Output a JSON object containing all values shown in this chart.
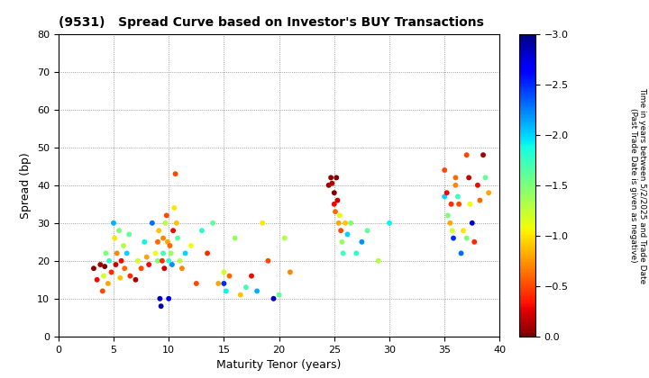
{
  "title": "(9531)   Spread Curve based on Investor's BUY Transactions",
  "xlabel": "Maturity Tenor (years)",
  "ylabel": "Spread (bp)",
  "colorbar_label": "Time in years between 5/2/2025 and Trade Date\n(Past Trade Date is given as negative)",
  "xlim": [
    0,
    40
  ],
  "ylim": [
    0,
    80
  ],
  "xticks": [
    0,
    5,
    10,
    15,
    20,
    25,
    30,
    35,
    40
  ],
  "yticks": [
    0,
    10,
    20,
    30,
    40,
    50,
    60,
    70,
    80
  ],
  "clim": [
    -3.0,
    0.0
  ],
  "cticks": [
    0.0,
    -0.5,
    -1.0,
    -1.5,
    -2.0,
    -2.5,
    -3.0
  ],
  "points": [
    [
      3.2,
      18.0,
      -0.05
    ],
    [
      3.5,
      15.0,
      -0.3
    ],
    [
      3.8,
      19.0,
      -0.1
    ],
    [
      4.0,
      12.0,
      -0.5
    ],
    [
      4.1,
      16.0,
      -1.2
    ],
    [
      4.2,
      18.5,
      -0.0
    ],
    [
      4.3,
      22.0,
      -1.5
    ],
    [
      4.5,
      14.0,
      -0.8
    ],
    [
      4.6,
      20.0,
      -1.8
    ],
    [
      4.8,
      17.0,
      -0.4
    ],
    [
      5.0,
      30.0,
      -2.1
    ],
    [
      5.1,
      26.0,
      -1.0
    ],
    [
      5.2,
      19.0,
      -0.2
    ],
    [
      5.3,
      22.0,
      -0.7
    ],
    [
      5.5,
      28.0,
      -1.5
    ],
    [
      5.6,
      15.5,
      -0.9
    ],
    [
      5.7,
      20.0,
      -0.3
    ],
    [
      5.9,
      24.0,
      -1.3
    ],
    [
      6.0,
      18.0,
      -0.6
    ],
    [
      6.2,
      22.0,
      -2.0
    ],
    [
      6.4,
      27.0,
      -1.6
    ],
    [
      6.5,
      16.0,
      -0.4
    ],
    [
      7.0,
      15.0,
      -0.1
    ],
    [
      7.2,
      20.0,
      -1.2
    ],
    [
      7.5,
      18.0,
      -0.5
    ],
    [
      7.8,
      25.0,
      -1.9
    ],
    [
      8.0,
      21.0,
      -0.8
    ],
    [
      8.2,
      19.0,
      -0.3
    ],
    [
      8.5,
      30.0,
      -2.3
    ],
    [
      8.8,
      22.0,
      -1.1
    ],
    [
      9.0,
      25.0,
      -0.6
    ],
    [
      9.0,
      20.0,
      -1.5
    ],
    [
      9.1,
      28.0,
      -0.9
    ],
    [
      9.2,
      10.0,
      -2.8
    ],
    [
      9.3,
      8.0,
      -2.9
    ],
    [
      9.4,
      20.0,
      -0.4
    ],
    [
      9.5,
      22.0,
      -1.7
    ],
    [
      9.5,
      26.0,
      -0.7
    ],
    [
      9.6,
      18.0,
      -0.2
    ],
    [
      9.7,
      30.0,
      -1.3
    ],
    [
      9.8,
      32.0,
      -0.5
    ],
    [
      9.9,
      25.0,
      -0.8
    ],
    [
      10.0,
      20.0,
      -1.8
    ],
    [
      10.0,
      10.0,
      -2.7
    ],
    [
      10.1,
      24.0,
      -0.6
    ],
    [
      10.2,
      22.0,
      -1.4
    ],
    [
      10.3,
      19.0,
      -2.2
    ],
    [
      10.4,
      28.0,
      -0.3
    ],
    [
      10.5,
      34.0,
      -1.0
    ],
    [
      10.6,
      43.0,
      -0.5
    ],
    [
      10.7,
      30.0,
      -0.9
    ],
    [
      10.8,
      26.0,
      -1.6
    ],
    [
      11.0,
      20.0,
      -1.3
    ],
    [
      11.2,
      18.0,
      -0.7
    ],
    [
      11.5,
      22.0,
      -2.0
    ],
    [
      12.0,
      24.0,
      -1.1
    ],
    [
      12.5,
      14.0,
      -0.5
    ],
    [
      13.0,
      28.0,
      -1.8
    ],
    [
      13.5,
      22.0,
      -0.4
    ],
    [
      14.0,
      30.0,
      -1.6
    ],
    [
      14.5,
      14.0,
      -0.8
    ],
    [
      15.0,
      14.0,
      -2.5
    ],
    [
      15.0,
      17.0,
      -1.2
    ],
    [
      15.2,
      12.0,
      -1.9
    ],
    [
      15.5,
      16.0,
      -0.6
    ],
    [
      16.0,
      26.0,
      -1.4
    ],
    [
      16.5,
      11.0,
      -0.9
    ],
    [
      17.0,
      13.0,
      -1.7
    ],
    [
      17.5,
      16.0,
      -0.3
    ],
    [
      18.0,
      12.0,
      -2.1
    ],
    [
      18.5,
      30.0,
      -1.0
    ],
    [
      19.0,
      20.0,
      -0.5
    ],
    [
      19.5,
      10.0,
      -2.8
    ],
    [
      20.0,
      11.0,
      -1.6
    ],
    [
      20.5,
      26.0,
      -1.3
    ],
    [
      21.0,
      17.0,
      -0.7
    ],
    [
      24.5,
      40.0,
      -0.1
    ],
    [
      24.7,
      42.0,
      -0.05
    ],
    [
      24.8,
      40.5,
      -0.15
    ],
    [
      25.0,
      38.0,
      -0.0
    ],
    [
      25.0,
      35.0,
      -0.3
    ],
    [
      25.1,
      33.0,
      -0.6
    ],
    [
      25.2,
      42.0,
      -0.0
    ],
    [
      25.3,
      36.0,
      -0.2
    ],
    [
      25.4,
      30.0,
      -0.8
    ],
    [
      25.5,
      32.0,
      -1.1
    ],
    [
      25.6,
      28.0,
      -0.5
    ],
    [
      25.7,
      25.0,
      -1.4
    ],
    [
      25.8,
      22.0,
      -1.7
    ],
    [
      26.0,
      30.0,
      -0.9
    ],
    [
      26.2,
      27.0,
      -2.0
    ],
    [
      26.5,
      30.0,
      -1.5
    ],
    [
      27.0,
      22.0,
      -1.8
    ],
    [
      27.5,
      25.0,
      -2.2
    ],
    [
      28.0,
      28.0,
      -1.6
    ],
    [
      29.0,
      20.0,
      -1.3
    ],
    [
      30.0,
      30.0,
      -1.9
    ],
    [
      35.0,
      44.0,
      -0.5
    ],
    [
      35.0,
      37.0,
      -2.0
    ],
    [
      35.2,
      38.0,
      -0.3
    ],
    [
      35.3,
      32.0,
      -1.5
    ],
    [
      35.5,
      30.0,
      -0.8
    ],
    [
      35.6,
      35.0,
      -0.4
    ],
    [
      35.7,
      28.0,
      -1.2
    ],
    [
      35.8,
      26.0,
      -2.5
    ],
    [
      36.0,
      42.0,
      -0.6
    ],
    [
      36.0,
      40.0,
      -0.7
    ],
    [
      36.2,
      37.0,
      -1.7
    ],
    [
      36.3,
      35.0,
      -0.5
    ],
    [
      36.5,
      22.0,
      -2.3
    ],
    [
      36.7,
      28.0,
      -1.0
    ],
    [
      37.0,
      48.0,
      -0.5
    ],
    [
      37.0,
      26.0,
      -1.5
    ],
    [
      37.2,
      42.0,
      -0.2
    ],
    [
      37.3,
      35.0,
      -1.1
    ],
    [
      37.5,
      30.0,
      -2.8
    ],
    [
      37.7,
      25.0,
      -0.4
    ],
    [
      38.0,
      40.0,
      -0.3
    ],
    [
      38.2,
      36.0,
      -0.6
    ],
    [
      38.5,
      48.0,
      -0.1
    ],
    [
      38.7,
      42.0,
      -1.6
    ],
    [
      39.0,
      38.0,
      -0.8
    ]
  ]
}
